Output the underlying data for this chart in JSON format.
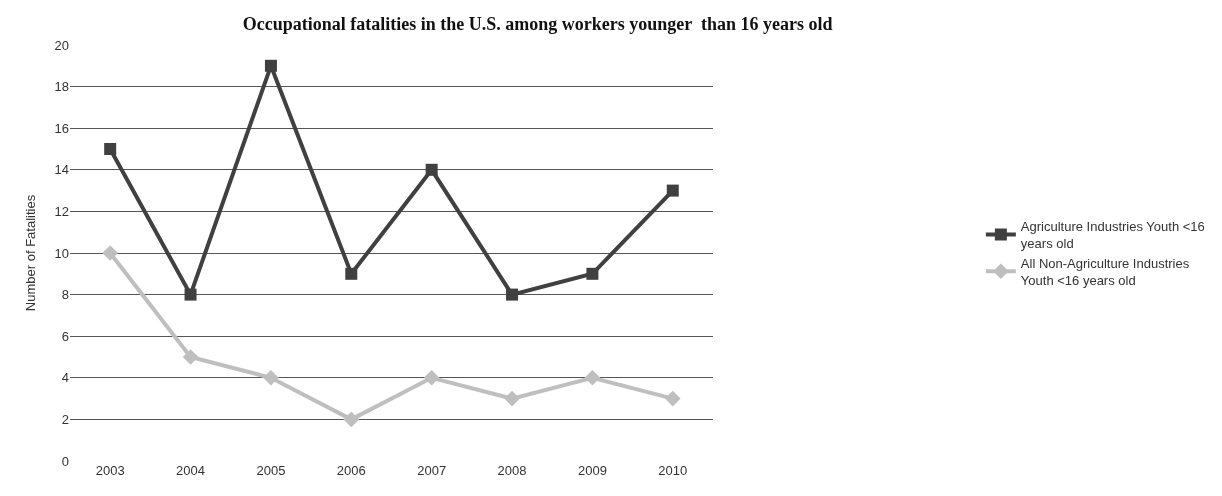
{
  "chart_data": {
    "type": "line",
    "title": "Occupational fatalities in the U.S. among workers younger  than 16 years old",
    "ylabel": "Number of Fatalities",
    "categories": [
      "2003",
      "2004",
      "2005",
      "2006",
      "2007",
      "2008",
      "2009",
      "2010"
    ],
    "series": [
      {
        "name": "Agriculture Industries Youth <16 years old",
        "color": "#404040",
        "marker": "square",
        "values": [
          15,
          8,
          19,
          9,
          14,
          8,
          9,
          13
        ]
      },
      {
        "name": "All Non-Agriculture Industries Youth <16 years old",
        "color": "#bfbfbf",
        "marker": "diamond",
        "values": [
          10,
          5,
          4,
          2,
          4,
          3,
          4,
          3
        ]
      }
    ],
    "ylim": [
      0,
      20
    ],
    "yticks": [
      0,
      2,
      4,
      6,
      8,
      10,
      12,
      14,
      16,
      18,
      20
    ],
    "grid": "y",
    "legend": "right",
    "line_style": "solid"
  }
}
